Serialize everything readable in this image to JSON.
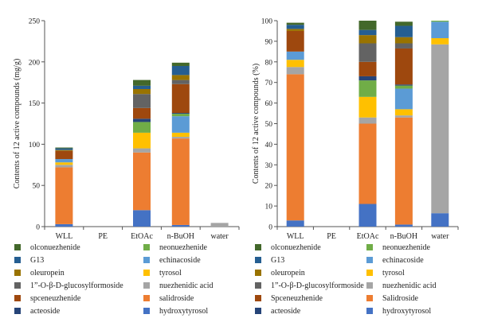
{
  "chart_data": [
    {
      "type": "bar",
      "stacked": true,
      "categories": [
        "WLL",
        "PE",
        "EtOAc",
        "n-BuOH",
        "water"
      ],
      "ylabel": "Contents of 12 active compounds (mg/g)",
      "ylim": [
        0,
        250
      ],
      "yticks": [
        0,
        50,
        100,
        150,
        200,
        250
      ],
      "grid": false,
      "legend_position": "bottom",
      "series": [
        {
          "name": "hydroxytyrosol",
          "color": "#4472c4",
          "values": [
            3,
            0,
            20,
            2,
            0
          ]
        },
        {
          "name": "salidroside",
          "color": "#ed7d31",
          "values": [
            69,
            0,
            70,
            105,
            0
          ]
        },
        {
          "name": "nuezhenidic acid",
          "color": "#a5a5a5",
          "values": [
            3,
            0,
            5,
            2,
            4.5
          ]
        },
        {
          "name": "tyrosol",
          "color": "#ffc000",
          "values": [
            3,
            0,
            19,
            5,
            0
          ]
        },
        {
          "name": "echinacoside",
          "color": "#5b9bd5",
          "values": [
            4,
            0,
            0,
            20,
            0
          ]
        },
        {
          "name": "neonuezhenide",
          "color": "#70ad47",
          "values": [
            0,
            0,
            13,
            3,
            0
          ]
        },
        {
          "name": "acteoside",
          "color": "#264478",
          "values": [
            0,
            0,
            4,
            1,
            0
          ]
        },
        {
          "name": "spceneuzhenide",
          "color": "#9e480e",
          "values": [
            10,
            0,
            13,
            35,
            0
          ]
        },
        {
          "name": "1”-O-β-D-glucosylformoside",
          "color": "#636363",
          "values": [
            0,
            0,
            17,
            5,
            0
          ]
        },
        {
          "name": "oleuropein",
          "color": "#997300",
          "values": [
            1,
            0,
            6,
            6,
            0
          ]
        },
        {
          "name": "G13",
          "color": "#255e91",
          "values": [
            2,
            0,
            4,
            11,
            0
          ]
        },
        {
          "name": "olconuezhenide",
          "color": "#43682b",
          "values": [
            1,
            0,
            7,
            4,
            0
          ]
        }
      ]
    },
    {
      "type": "bar",
      "stacked": true,
      "categories": [
        "WLL",
        "PE",
        "EtOAc",
        "n-BuOH",
        "water"
      ],
      "ylabel": "Contents of 12 active compounds (%)",
      "ylim": [
        0,
        100
      ],
      "yticks": [
        0,
        10,
        20,
        30,
        40,
        50,
        60,
        70,
        80,
        90,
        100
      ],
      "grid": false,
      "legend_position": "bottom",
      "series": [
        {
          "name": "hydroxytyrosol",
          "color": "#4472c4",
          "values": [
            3,
            0,
            11,
            1,
            6.5
          ]
        },
        {
          "name": "Salidroside",
          "color": "#ed7d31",
          "values": [
            71,
            0,
            39,
            52,
            0
          ]
        },
        {
          "name": "nuezhenidic acid",
          "color": "#a5a5a5",
          "values": [
            3.5,
            0,
            3,
            1,
            82
          ]
        },
        {
          "name": "tyrosol",
          "color": "#ffc000",
          "values": [
            3.5,
            0,
            10,
            3,
            3
          ]
        },
        {
          "name": "echinacoside",
          "color": "#5b9bd5",
          "values": [
            4,
            0,
            0,
            10,
            8
          ]
        },
        {
          "name": "neonuezhenide",
          "color": "#70ad47",
          "values": [
            0,
            0,
            8,
            1.5,
            0.5
          ]
        },
        {
          "name": "acteoside",
          "color": "#264478",
          "values": [
            0,
            0,
            2,
            0.5,
            0
          ]
        },
        {
          "name": "Spceneuzhenide",
          "color": "#9e480e",
          "values": [
            10,
            0,
            7,
            17.5,
            0
          ]
        },
        {
          "name": "1”-O-β-D-glucosylformoside",
          "color": "#636363",
          "values": [
            0,
            0,
            9,
            2.5,
            0
          ]
        },
        {
          "name": "oleuropein",
          "color": "#997300",
          "values": [
            1,
            0,
            4,
            3,
            0
          ]
        },
        {
          "name": "G13",
          "color": "#255e91",
          "values": [
            2,
            0,
            2.5,
            5.5,
            0
          ]
        },
        {
          "name": "olconuezhenide",
          "color": "#43682b",
          "values": [
            1,
            0,
            4.5,
            2,
            0
          ]
        }
      ]
    }
  ],
  "legend_layout": [
    [
      "olconuezhenide",
      "neonuezhenide"
    ],
    [
      "G13",
      "echinacoside"
    ],
    [
      "oleuropein",
      "tyrosol"
    ],
    [
      "1”-O-β-D-glucosylformoside",
      "nuezhenidic acid"
    ],
    [
      "spceneuzhenide",
      "salidroside"
    ],
    [
      "acteoside",
      "hydroxytyrosol"
    ]
  ]
}
